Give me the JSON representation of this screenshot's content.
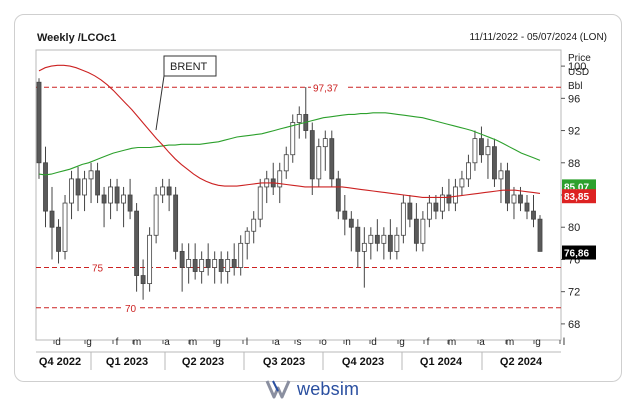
{
  "header": {
    "title": "Weekly /LCOc1",
    "date_range": "11/11/2022 - 05/07/2024 (LON)"
  },
  "brand": {
    "name": "websim",
    "mark_color": "#8a8fa0",
    "text_color": "#2a4fa0"
  },
  "chart_data": {
    "type": "candlestick",
    "annotation": "BRENT",
    "y_axis_label": [
      "Price",
      "USD",
      "Bbl"
    ],
    "ylim": [
      66,
      102
    ],
    "y_ticks": [
      68,
      72,
      76,
      80,
      84,
      88,
      92,
      96,
      100
    ],
    "y_tick_labels": [
      "68",
      "72",
      "76",
      "80",
      "84",
      "88",
      "92",
      "96",
      "100"
    ],
    "reference_lines": [
      {
        "value": 97.37,
        "label": "97,37",
        "color": "#cc2222"
      },
      {
        "value": 75,
        "label": "75",
        "color": "#cc2222"
      },
      {
        "value": 70,
        "label": "70",
        "color": "#cc2222"
      }
    ],
    "price_tags": [
      {
        "value": 85.07,
        "label": "85,07",
        "color": "#2ca02c"
      },
      {
        "value": 83.85,
        "label": "83,85",
        "color": "#dd2222"
      },
      {
        "value": 76.86,
        "label": "76,86",
        "color": "#000000"
      }
    ],
    "month_labels": [
      "d",
      "g",
      "f",
      "m",
      "a",
      "m",
      "g",
      "l",
      "a",
      "s",
      "o",
      "n",
      "d",
      "g",
      "f",
      "m",
      "a",
      "m",
      "g",
      "l"
    ],
    "quarters": [
      "Q4 2022",
      "Q1 2023",
      "Q2 2023",
      "Q3 2023",
      "Q4 2023",
      "Q1 2024",
      "Q2 2024"
    ],
    "series": [
      {
        "name": "",
        "color": "#2ca02c",
        "values": [
          86.6,
          86.5,
          86.6,
          86.8,
          87.0,
          87.2,
          87.5,
          87.8,
          88.0,
          88.3,
          88.6,
          88.9,
          89.2,
          89.4,
          89.6,
          89.8,
          89.9,
          89.9,
          89.9,
          90.0,
          90.1,
          90.2,
          90.2,
          90.3,
          90.3,
          90.3,
          90.3,
          90.4,
          90.5,
          90.6,
          90.8,
          91.0,
          91.2,
          91.3,
          91.4,
          91.5,
          91.6,
          91.8,
          92.0,
          92.2,
          92.4,
          92.6,
          92.8,
          93.0,
          93.2,
          93.4,
          93.6,
          93.7,
          93.8,
          93.9,
          94.0,
          94.0,
          94.1,
          94.1,
          94.2,
          94.2,
          94.2,
          94.1,
          94.0,
          93.9,
          93.8,
          93.7,
          93.6,
          93.4,
          93.2,
          93.0,
          92.8,
          92.6,
          92.4,
          92.2,
          92.0,
          91.7,
          91.4,
          91.1,
          90.8,
          90.4,
          90.0,
          89.6,
          89.2,
          88.9,
          88.6,
          88.3
        ]
      },
      {
        "name": "",
        "color": "#cc2222",
        "values": [
          99.4,
          99.8,
          100.0,
          100.1,
          100.1,
          100.0,
          99.8,
          99.5,
          99.2,
          98.8,
          98.3,
          97.7,
          97.0,
          96.2,
          95.4,
          94.6,
          93.7,
          92.8,
          91.9,
          91.0,
          90.2,
          89.3,
          88.5,
          87.8,
          87.2,
          86.6,
          86.1,
          85.7,
          85.4,
          85.2,
          85.1,
          85.1,
          85.1,
          85.2,
          85.3,
          85.4,
          85.5,
          85.5,
          85.5,
          85.4,
          85.3,
          85.2,
          85.1,
          85.0,
          85.0,
          85.0,
          85.0,
          85.0,
          85.0,
          85.0,
          84.9,
          84.8,
          84.7,
          84.6,
          84.5,
          84.4,
          84.3,
          84.2,
          84.1,
          84.0,
          83.9,
          83.8,
          83.7,
          83.7,
          83.7,
          83.7,
          83.7,
          83.8,
          83.9,
          84.0,
          84.1,
          84.2,
          84.3,
          84.4,
          84.5,
          84.6,
          84.6,
          84.6,
          84.5,
          84.4,
          84.3,
          84.2
        ]
      }
    ],
    "candles": [
      {
        "o": 98,
        "h": 98.5,
        "l": 86,
        "c": 88
      },
      {
        "o": 88,
        "h": 90,
        "l": 80,
        "c": 82
      },
      {
        "o": 82,
        "h": 85,
        "l": 76,
        "c": 80
      },
      {
        "o": 80,
        "h": 81,
        "l": 75.5,
        "c": 77
      },
      {
        "o": 77,
        "h": 84,
        "l": 76,
        "c": 83
      },
      {
        "o": 83,
        "h": 87,
        "l": 81,
        "c": 86
      },
      {
        "o": 86,
        "h": 87.5,
        "l": 82,
        "c": 84
      },
      {
        "o": 84,
        "h": 87,
        "l": 82,
        "c": 86
      },
      {
        "o": 86,
        "h": 88,
        "l": 83,
        "c": 87
      },
      {
        "o": 87,
        "h": 88,
        "l": 83,
        "c": 84
      },
      {
        "o": 84,
        "h": 85,
        "l": 80,
        "c": 83
      },
      {
        "o": 83,
        "h": 86,
        "l": 81,
        "c": 85
      },
      {
        "o": 85,
        "h": 86,
        "l": 82,
        "c": 83
      },
      {
        "o": 83,
        "h": 85,
        "l": 80,
        "c": 84
      },
      {
        "o": 84,
        "h": 86,
        "l": 81,
        "c": 82
      },
      {
        "o": 82,
        "h": 83,
        "l": 72,
        "c": 74
      },
      {
        "o": 74,
        "h": 76,
        "l": 71,
        "c": 73
      },
      {
        "o": 73,
        "h": 80,
        "l": 72,
        "c": 79
      },
      {
        "o": 79,
        "h": 85,
        "l": 78,
        "c": 84
      },
      {
        "o": 84,
        "h": 86,
        "l": 83,
        "c": 85
      },
      {
        "o": 85,
        "h": 86,
        "l": 82,
        "c": 84
      },
      {
        "o": 84,
        "h": 85,
        "l": 76,
        "c": 77
      },
      {
        "o": 77,
        "h": 78,
        "l": 72,
        "c": 75
      },
      {
        "o": 75,
        "h": 78,
        "l": 73,
        "c": 76
      },
      {
        "o": 76,
        "h": 78,
        "l": 73.5,
        "c": 74.5
      },
      {
        "o": 74.5,
        "h": 77,
        "l": 73,
        "c": 76
      },
      {
        "o": 76,
        "h": 78,
        "l": 74,
        "c": 75
      },
      {
        "o": 75,
        "h": 77,
        "l": 73,
        "c": 76
      },
      {
        "o": 76,
        "h": 77,
        "l": 73,
        "c": 74.5
      },
      {
        "o": 74.5,
        "h": 77,
        "l": 73,
        "c": 76
      },
      {
        "o": 76,
        "h": 78,
        "l": 74,
        "c": 75
      },
      {
        "o": 75,
        "h": 79,
        "l": 74,
        "c": 78
      },
      {
        "o": 78,
        "h": 80,
        "l": 76,
        "c": 79.5
      },
      {
        "o": 79.5,
        "h": 82,
        "l": 78,
        "c": 81
      },
      {
        "o": 81,
        "h": 86,
        "l": 80,
        "c": 85
      },
      {
        "o": 85,
        "h": 87,
        "l": 83,
        "c": 86
      },
      {
        "o": 86,
        "h": 88,
        "l": 84,
        "c": 85
      },
      {
        "o": 85,
        "h": 88,
        "l": 83,
        "c": 87
      },
      {
        "o": 87,
        "h": 90,
        "l": 86,
        "c": 89
      },
      {
        "o": 89,
        "h": 94,
        "l": 88,
        "c": 93
      },
      {
        "o": 93,
        "h": 95,
        "l": 91,
        "c": 94
      },
      {
        "o": 94,
        "h": 97.4,
        "l": 91,
        "c": 92
      },
      {
        "o": 92,
        "h": 93,
        "l": 84,
        "c": 86
      },
      {
        "o": 86,
        "h": 91,
        "l": 85,
        "c": 90
      },
      {
        "o": 90,
        "h": 92,
        "l": 87,
        "c": 91
      },
      {
        "o": 91,
        "h": 92,
        "l": 85,
        "c": 86
      },
      {
        "o": 86,
        "h": 87,
        "l": 81,
        "c": 82
      },
      {
        "o": 82,
        "h": 84,
        "l": 79,
        "c": 81
      },
      {
        "o": 81,
        "h": 82,
        "l": 77,
        "c": 80
      },
      {
        "o": 80,
        "h": 81,
        "l": 75,
        "c": 77
      },
      {
        "o": 77,
        "h": 80,
        "l": 72.5,
        "c": 78
      },
      {
        "o": 78,
        "h": 80,
        "l": 76,
        "c": 79
      },
      {
        "o": 79,
        "h": 81,
        "l": 77,
        "c": 78
      },
      {
        "o": 78,
        "h": 80,
        "l": 76,
        "c": 79
      },
      {
        "o": 79,
        "h": 81,
        "l": 76,
        "c": 77
      },
      {
        "o": 77,
        "h": 80,
        "l": 76,
        "c": 79
      },
      {
        "o": 79,
        "h": 84,
        "l": 78,
        "c": 83
      },
      {
        "o": 83,
        "h": 84,
        "l": 80,
        "c": 81
      },
      {
        "o": 81,
        "h": 83,
        "l": 77,
        "c": 78
      },
      {
        "o": 78,
        "h": 82,
        "l": 77,
        "c": 81
      },
      {
        "o": 81,
        "h": 84,
        "l": 80,
        "c": 83
      },
      {
        "o": 83,
        "h": 84,
        "l": 81,
        "c": 82
      },
      {
        "o": 82,
        "h": 85,
        "l": 81,
        "c": 84
      },
      {
        "o": 84,
        "h": 86,
        "l": 82,
        "c": 83
      },
      {
        "o": 83,
        "h": 86,
        "l": 82,
        "c": 85
      },
      {
        "o": 85,
        "h": 87,
        "l": 84,
        "c": 86
      },
      {
        "o": 86,
        "h": 89,
        "l": 85,
        "c": 88
      },
      {
        "o": 88,
        "h": 92,
        "l": 87,
        "c": 91
      },
      {
        "o": 91,
        "h": 92.5,
        "l": 88,
        "c": 89
      },
      {
        "o": 89,
        "h": 91,
        "l": 86,
        "c": 90
      },
      {
        "o": 90,
        "h": 91,
        "l": 85,
        "c": 86
      },
      {
        "o": 86,
        "h": 88,
        "l": 83,
        "c": 87
      },
      {
        "o": 87,
        "h": 88,
        "l": 82,
        "c": 83
      },
      {
        "o": 83,
        "h": 85,
        "l": 81,
        "c": 84
      },
      {
        "o": 84,
        "h": 85,
        "l": 82,
        "c": 83
      },
      {
        "o": 83,
        "h": 84,
        "l": 81,
        "c": 82
      },
      {
        "o": 82,
        "h": 84,
        "l": 80,
        "c": 81
      },
      {
        "o": 81,
        "h": 81.5,
        "l": 77,
        "c": 77
      }
    ]
  }
}
